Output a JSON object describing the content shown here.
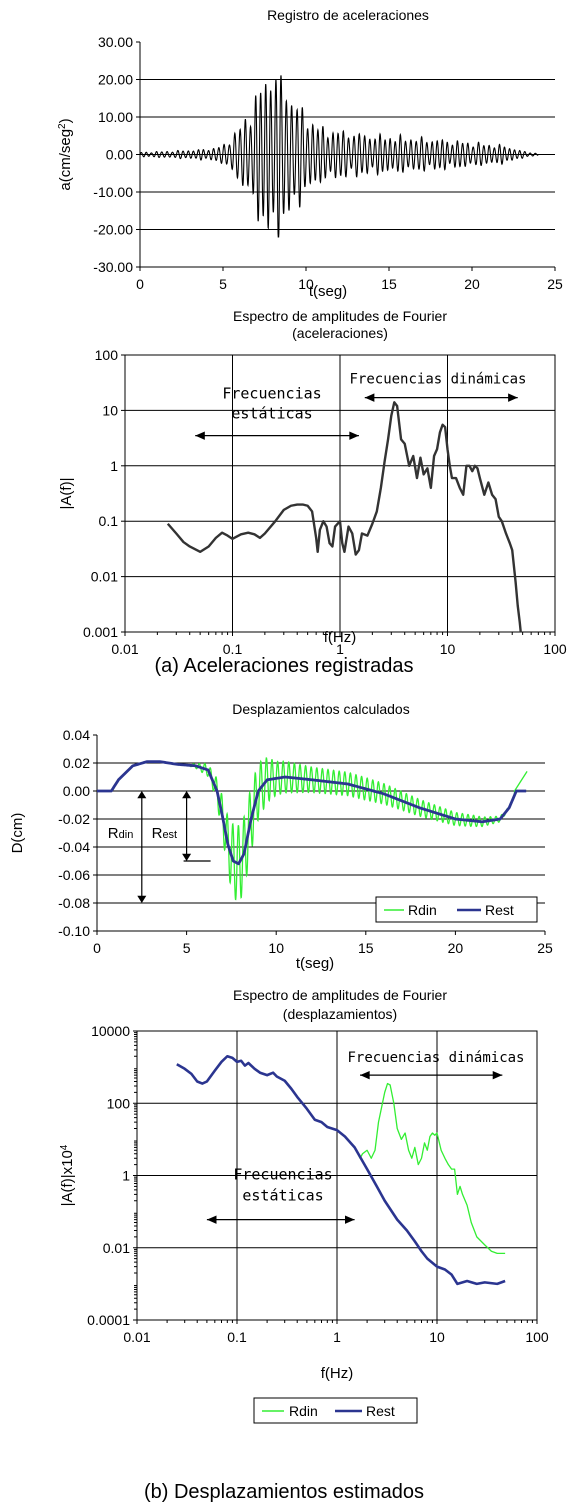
{
  "captions": {
    "a": "(a) Aceleraciones registradas",
    "b": "(b) Desplazamientos estimados"
  },
  "colors": {
    "black": "#000000",
    "spectrum_acc": "#333333",
    "rdin": "#33ee33",
    "rest": "#2b3590",
    "grid": "#000000"
  },
  "chart_data": [
    {
      "id": "acc_record",
      "type": "line",
      "title": "Registro de aceleraciones",
      "xlabel": "t(seg)",
      "ylabel_main": "a(cm/seg",
      "ylabel_sup": "2",
      "ylabel_end": ")",
      "xlim": [
        0,
        25
      ],
      "ylim": [
        -30,
        30
      ],
      "xticks": [
        0,
        5,
        10,
        15,
        20,
        25
      ],
      "xtick_labels": [
        "0",
        "5",
        "10",
        "15",
        "20",
        "25"
      ],
      "yticks": [
        -30,
        -20,
        -10,
        0,
        10,
        20,
        30
      ],
      "ytick_labels": [
        "-30.00",
        "-20.00",
        "-10.00",
        "0.00",
        "10.00",
        "20.00",
        "30.00"
      ],
      "grid": "horizontal",
      "series": [
        {
          "envelope": {
            "t": [
              0,
              2,
              4,
              5,
              5.5,
              6.5,
              7.0,
              7.6,
              7.9,
              8.3,
              8.8,
              9.3,
              10.0,
              11,
              14,
              18,
              22,
              23,
              24
            ],
            "amp": [
              0.5,
              0.8,
              1.2,
              2.0,
              4,
              9,
              14,
              18,
              21,
              19,
              16,
              13,
              9,
              6,
              4.5,
              3.5,
              2,
              0.8,
              0.2
            ]
          },
          "t_start": 0,
          "t_end": 24,
          "frequency_hz": 3.2
        }
      ]
    },
    {
      "id": "acc_fourier",
      "type": "line",
      "title_line1": "Espectro de amplitudes de Fourier",
      "title_line2": "(aceleraciones)",
      "xlabel": "f(Hz)",
      "ylabel": "|A(f)|",
      "xscale": "log",
      "yscale": "log",
      "xlim": [
        0.01,
        100
      ],
      "ylim": [
        0.001,
        100
      ],
      "xticks": [
        0.01,
        0.1,
        1,
        10,
        100
      ],
      "xtick_labels": [
        "0.01",
        "0.1",
        "1",
        "10",
        "100"
      ],
      "yticks": [
        0.001,
        0.01,
        0.1,
        1,
        10,
        100
      ],
      "ytick_labels": [
        "0.001",
        "0.01",
        "0.1",
        "1",
        "10",
        "100"
      ],
      "grid": "both",
      "annotations": [
        {
          "text_line1": "Frecuencias",
          "text_line2": "estáticas",
          "arrow_from": 0.045,
          "arrow_to": 1.5,
          "y": 3.5
        },
        {
          "text_line1": "Frecuencias dinámicas",
          "arrow_from": 1.7,
          "arrow_to": 45,
          "y": 17
        }
      ],
      "series": [
        {
          "f": [
            0.025,
            0.03,
            0.035,
            0.04,
            0.05,
            0.06,
            0.07,
            0.08,
            0.09,
            0.1,
            0.12,
            0.14,
            0.16,
            0.18,
            0.2,
            0.25,
            0.3,
            0.35,
            0.4,
            0.45,
            0.5,
            0.55,
            0.6,
            0.62,
            0.65,
            0.7,
            0.75,
            0.8,
            0.85,
            0.9,
            1.0,
            1.05,
            1.1,
            1.2,
            1.3,
            1.4,
            1.5,
            1.6,
            1.8,
            2.0,
            2.2,
            2.4,
            2.6,
            2.8,
            3.0,
            3.2,
            3.4,
            3.7,
            4.0,
            4.4,
            4.8,
            5.2,
            5.6,
            6.0,
            6.5,
            7.0,
            7.5,
            8.0,
            8.5,
            9.0,
            9.5,
            10.0,
            10.5,
            11.0,
            12.0,
            13.0,
            14.0,
            15.0,
            16.0,
            17.0,
            18.0,
            19.0,
            20.0,
            22.0,
            24.0,
            26.0,
            28.0,
            30.0,
            32.0,
            35.0,
            38.0,
            40.0,
            43.0,
            45.0,
            47.0,
            48.0
          ],
          "a": [
            0.09,
            0.06,
            0.042,
            0.035,
            0.028,
            0.035,
            0.05,
            0.062,
            0.055,
            0.048,
            0.058,
            0.062,
            0.058,
            0.05,
            0.06,
            0.1,
            0.16,
            0.19,
            0.2,
            0.2,
            0.19,
            0.15,
            0.05,
            0.028,
            0.07,
            0.1,
            0.08,
            0.04,
            0.035,
            0.08,
            0.1,
            0.04,
            0.028,
            0.08,
            0.06,
            0.025,
            0.03,
            0.06,
            0.055,
            0.09,
            0.15,
            0.4,
            1.2,
            3.0,
            8.0,
            14.0,
            12.0,
            3.0,
            2.5,
            1.0,
            1.5,
            0.6,
            1.4,
            0.7,
            0.9,
            0.4,
            1.5,
            2.0,
            4.0,
            5.5,
            5.0,
            2.0,
            1.0,
            0.6,
            0.6,
            0.4,
            0.3,
            1.0,
            1.0,
            0.8,
            1.0,
            0.9,
            0.6,
            0.3,
            0.5,
            0.3,
            0.25,
            0.12,
            0.1,
            0.06,
            0.04,
            0.03,
            0.008,
            0.003,
            0.0015,
            0.001
          ]
        }
      ]
    },
    {
      "id": "disp",
      "type": "line",
      "title": "Desplazamientos calculados",
      "xlabel": "t(seg)",
      "ylabel": "D(cm)",
      "xlim": [
        0,
        25
      ],
      "ylim": [
        -0.1,
        0.04
      ],
      "xticks": [
        0,
        5,
        10,
        15,
        20,
        25
      ],
      "xtick_labels": [
        "0",
        "5",
        "10",
        "15",
        "20",
        "25"
      ],
      "yticks": [
        -0.1,
        -0.08,
        -0.06,
        -0.04,
        -0.02,
        0.0,
        0.02,
        0.04
      ],
      "ytick_labels": [
        "-0.10",
        "-0.08",
        "-0.06",
        "-0.04",
        "-0.02",
        "0.00",
        "0.02",
        "0.04"
      ],
      "grid": "horizontal",
      "annotations": [
        {
          "label": "R",
          "sub": "din",
          "x": 2.5,
          "y_top": 0.0,
          "y_bottom": -0.08
        },
        {
          "label": "R",
          "sub": "est",
          "x": 5.0,
          "y_top": 0.0,
          "y_bottom": -0.05
        }
      ],
      "legend": {
        "position": "bottom-right",
        "entries": [
          "Rdin",
          "Rest"
        ]
      },
      "series": [
        {
          "name": "Rest",
          "t": [
            0,
            0.8,
            1.2,
            2.0,
            2.8,
            3.5,
            4.5,
            5.5,
            6.2,
            6.7,
            7.0,
            7.3,
            7.6,
            7.9,
            8.2,
            8.6,
            9.0,
            9.5,
            10.5,
            12,
            14,
            16,
            18,
            20,
            21.5,
            22.5,
            23.0,
            23.4,
            24.0
          ],
          "d": [
            0.0,
            0.0,
            0.008,
            0.018,
            0.021,
            0.021,
            0.019,
            0.018,
            0.015,
            0.0,
            -0.018,
            -0.038,
            -0.05,
            -0.052,
            -0.045,
            -0.02,
            0.0,
            0.008,
            0.01,
            0.008,
            0.005,
            -0.002,
            -0.012,
            -0.02,
            -0.022,
            -0.02,
            -0.012,
            0.0,
            0.0
          ]
        },
        {
          "name": "Rdin",
          "osc_envelope": {
            "t": [
              0,
              5,
              5.6,
              6.5,
              7.0,
              7.6,
              8.0,
              8.5,
              9.0,
              10,
              12,
              15,
              18,
              21,
              22.5,
              23.3
            ],
            "amp": [
              0,
              0,
              0.002,
              0.006,
              0.014,
              0.026,
              0.028,
              0.024,
              0.02,
              0.012,
              0.009,
              0.008,
              0.006,
              0.004,
              0.002,
              0
            ]
          },
          "frequency_hz": 3.2,
          "tail": {
            "t": [
              23.3,
              24.0
            ],
            "d": [
              0.0,
              0.014
            ]
          }
        }
      ]
    },
    {
      "id": "disp_fourier",
      "type": "line",
      "title_line1": "Espectro de amplitudes de Fourier",
      "title_line2": "(desplazamientos)",
      "xlabel": "f(Hz)",
      "ylabel_main": "|A(f)|x10",
      "ylabel_sup": "4",
      "xscale": "log",
      "yscale": "log",
      "xlim": [
        0.01,
        100
      ],
      "ylim": [
        0.0001,
        10000
      ],
      "xticks": [
        0.01,
        0.1,
        1,
        10,
        100
      ],
      "xtick_labels": [
        "0.01",
        "0.1",
        "1",
        "10",
        "100"
      ],
      "yticks": [
        0.0001,
        0.01,
        1,
        100,
        10000
      ],
      "ytick_labels": [
        "0.0001",
        "0.01",
        "1",
        "100",
        "10000"
      ],
      "grid": "both",
      "annotations": [
        {
          "text_line1": "Frecuencias",
          "text_line2": "estáticas",
          "arrow_from": 0.05,
          "arrow_to": 1.5,
          "y": 0.06
        },
        {
          "text_line1": "Frecuencias dinámicas",
          "arrow_from": 1.7,
          "arrow_to": 45,
          "y": 600
        }
      ],
      "legend": {
        "position": "bottom-center",
        "entries": [
          "Rdin",
          "Rest"
        ]
      },
      "series": [
        {
          "name": "Rest",
          "f": [
            0.025,
            0.03,
            0.035,
            0.04,
            0.045,
            0.05,
            0.06,
            0.07,
            0.08,
            0.09,
            0.1,
            0.11,
            0.12,
            0.13,
            0.15,
            0.17,
            0.2,
            0.23,
            0.25,
            0.3,
            0.35,
            0.4,
            0.5,
            0.6,
            0.7,
            0.8,
            1.0,
            1.2,
            1.5,
            2.0,
            2.5,
            3.0,
            4.0,
            5.0,
            6.0,
            7.0,
            8.0,
            10.0,
            12.0,
            14.0,
            16.0,
            20.0,
            25.0,
            30.0,
            40.0,
            48.0
          ],
          "a": [
            1200,
            900,
            650,
            400,
            350,
            400,
            800,
            1400,
            2000,
            1800,
            1400,
            1500,
            1100,
            1300,
            900,
            700,
            600,
            700,
            550,
            420,
            250,
            150,
            70,
            35,
            30,
            22,
            18,
            12,
            6,
            1.5,
            0.5,
            0.2,
            0.06,
            0.03,
            0.015,
            0.008,
            0.005,
            0.003,
            0.0025,
            0.0018,
            0.001,
            0.0012,
            0.001,
            0.0011,
            0.001,
            0.0012
          ]
        },
        {
          "name": "Rdin",
          "f": [
            1.5,
            1.7,
            1.8,
            2.0,
            2.2,
            2.4,
            2.6,
            2.8,
            3.0,
            3.2,
            3.4,
            3.7,
            4.0,
            4.4,
            4.8,
            5.2,
            5.6,
            6.0,
            6.5,
            7.0,
            7.5,
            8.0,
            8.5,
            9.0,
            9.5,
            10.0,
            11.0,
            12.0,
            13.0,
            14.0,
            15.0,
            16.0,
            17.0,
            18.0,
            20.0,
            22.0,
            25.0,
            30.0,
            35.0,
            40.0,
            48.0
          ],
          "a": [
            6,
            3,
            4,
            5,
            3,
            5,
            30,
            80,
            200,
            350,
            320,
            100,
            20,
            10,
            15,
            5,
            3,
            6,
            2,
            3,
            8,
            5,
            12,
            15,
            13,
            15,
            5,
            3,
            2,
            1.5,
            1.5,
            0.3,
            0.5,
            0.3,
            0.15,
            0.05,
            0.02,
            0.012,
            0.008,
            0.007,
            0.007
          ]
        }
      ]
    }
  ]
}
